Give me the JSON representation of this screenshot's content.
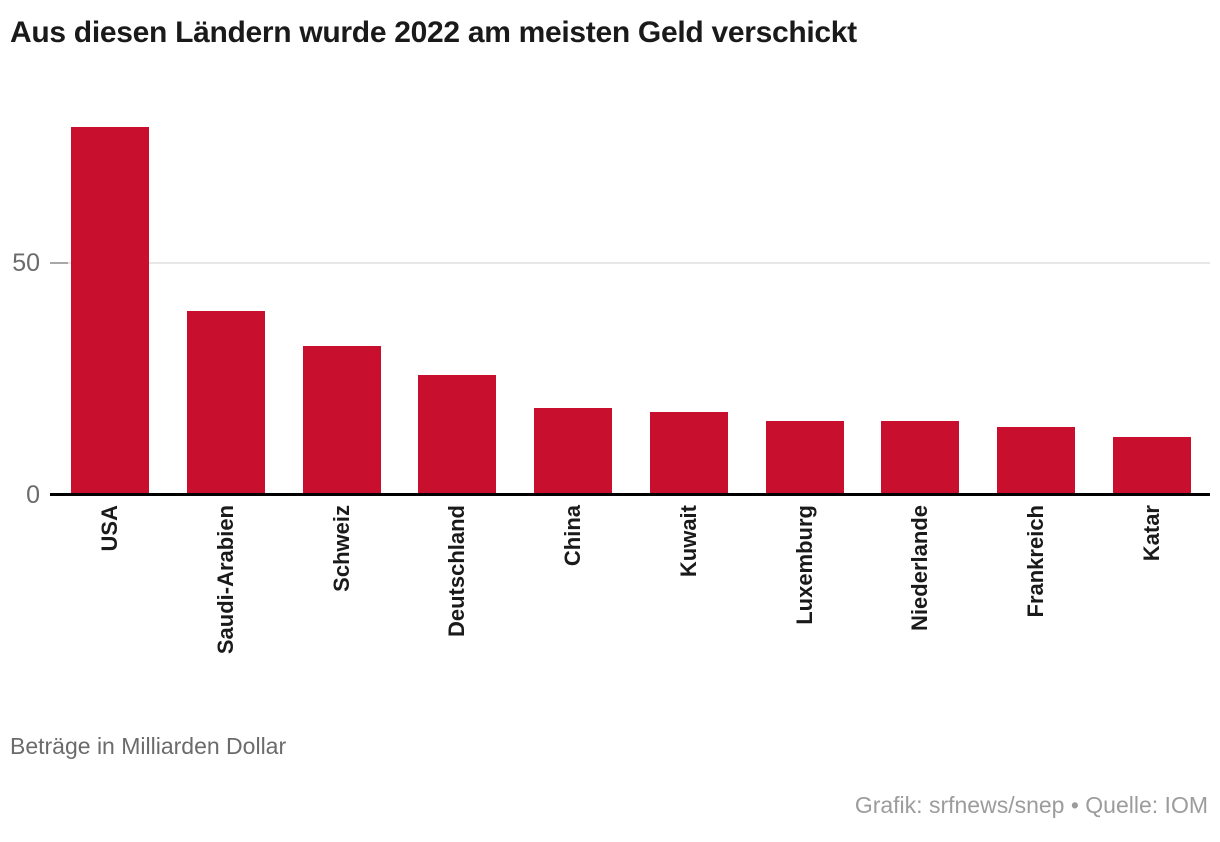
{
  "title": "Aus diesen Ländern wurde 2022 am meisten Geld verschickt",
  "chart_data": {
    "type": "bar",
    "title": "Aus diesen Ländern wurde 2022 am meisten Geld verschickt",
    "categories": [
      "USA",
      "Saudi-Arabien",
      "Schweiz",
      "Deutschland",
      "China",
      "Kuwait",
      "Luxemburg",
      "Niederlande",
      "Frankreich",
      "Katar"
    ],
    "values": [
      79.2,
      39.3,
      31.9,
      25.6,
      18.3,
      17.6,
      15.5,
      15.5,
      14.3,
      12.2
    ],
    "xlabel": "",
    "ylabel": "Beträge in Milliarden Dollar",
    "ylim": [
      0,
      85
    ],
    "yticks": [
      0,
      50
    ],
    "grid": "horizontal gridline at 50 only",
    "legend": "none",
    "bar_color": "#c8102e"
  },
  "y_axis": {
    "ticks": [
      "50",
      "0"
    ]
  },
  "footer": {
    "note": "Beträge in Milliarden Dollar",
    "credit": "Grafik: srfnews/snep • Quelle: IOM"
  },
  "colors": {
    "bar": "#c8102e",
    "title_text": "#1a1a1a",
    "axis_text": "#6b6b6b",
    "label_text": "#1a1a1a",
    "credit_text": "#9c9c9c",
    "gridline": "#e7e7e7",
    "tick_stub": "#a8a8a8",
    "baseline": "#000000",
    "background": "#ffffff"
  }
}
